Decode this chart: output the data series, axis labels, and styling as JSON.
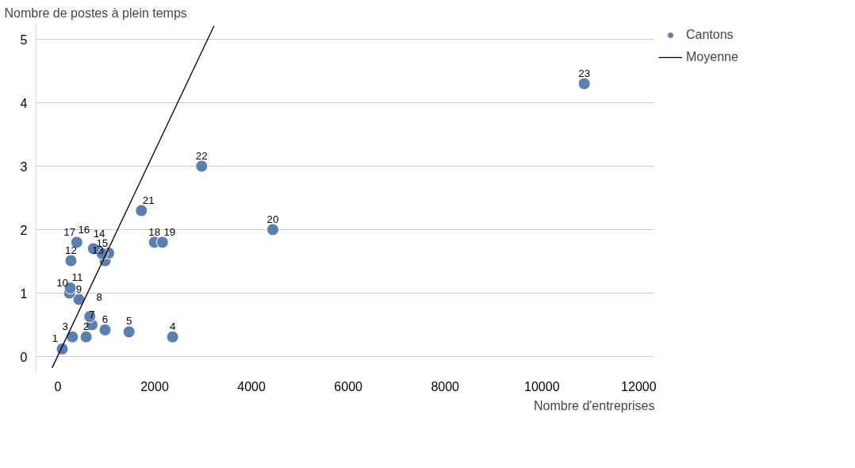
{
  "chart_data": {
    "type": "scatter",
    "xlabel": "Nombre d'entreprises",
    "ylabel": "Nombre de postes à plein temps",
    "xlim": [
      -450,
      12330
    ],
    "ylim": [
      -0.25,
      5.25
    ],
    "xticks": [
      0,
      2000,
      4000,
      6000,
      8000,
      10000,
      12000
    ],
    "yticks": [
      0,
      1,
      2,
      3,
      4,
      5
    ],
    "grid": "y",
    "legend": "top right",
    "series": [
      {
        "name": "Cantons",
        "marker": "circle",
        "color": "#5b7fb1",
        "x": [
          90,
          585,
          300,
          2370,
          1470,
          975,
          705,
          660,
          435,
          240,
          255,
          270,
          975,
          1050,
          915,
          735,
          390,
          1995,
          2160,
          4440,
          1725,
          2970,
          10875
        ],
        "values": [
          0.12,
          0.31,
          0.31,
          0.31,
          0.39,
          0.42,
          0.5,
          0.63,
          0.9,
          1.0,
          1.08,
          1.51,
          1.51,
          1.63,
          1.62,
          1.7,
          1.8,
          1.8,
          1.8,
          2.0,
          2.3,
          3.0,
          4.3
        ]
      },
      {
        "name": "Moyenne",
        "type": "line",
        "color": "#000000",
        "x": [
          -120,
          3225
        ],
        "values": [
          -0.18,
          5.21
        ]
      }
    ],
    "annotations": [
      {
        "text": "1",
        "x": 90,
        "y": 0.12
      },
      {
        "text": "2",
        "x": 585,
        "y": 0.31
      },
      {
        "text": "3",
        "x": 300,
        "y": 0.31
      },
      {
        "text": "4",
        "x": 2370,
        "y": 0.31
      },
      {
        "text": "5",
        "x": 1470,
        "y": 0.39
      },
      {
        "text": "6",
        "x": 975,
        "y": 0.42
      },
      {
        "text": "7",
        "x": 705,
        "y": 0.5
      },
      {
        "text": "8",
        "x": 660,
        "y": 0.63
      },
      {
        "text": "9",
        "x": 435,
        "y": 0.9
      },
      {
        "text": "10",
        "x": 240,
        "y": 1.0
      },
      {
        "text": "11",
        "x": 255,
        "y": 1.08
      },
      {
        "text": "12",
        "x": 270,
        "y": 1.51
      },
      {
        "text": "13",
        "x": 975,
        "y": 1.51
      },
      {
        "text": "14",
        "x": 1050,
        "y": 1.63
      },
      {
        "text": "15",
        "x": 915,
        "y": 1.62
      },
      {
        "text": "16",
        "x": 735,
        "y": 1.7
      },
      {
        "text": "17",
        "x": 390,
        "y": 1.8
      },
      {
        "text": "18",
        "x": 1995,
        "y": 1.8
      },
      {
        "text": "19",
        "x": 2160,
        "y": 1.8
      },
      {
        "text": "20",
        "x": 4440,
        "y": 2.0
      },
      {
        "text": "21",
        "x": 1725,
        "y": 2.3
      },
      {
        "text": "22",
        "x": 2970,
        "y": 3.0
      },
      {
        "text": "23",
        "x": 10875,
        "y": 4.3
      }
    ]
  }
}
